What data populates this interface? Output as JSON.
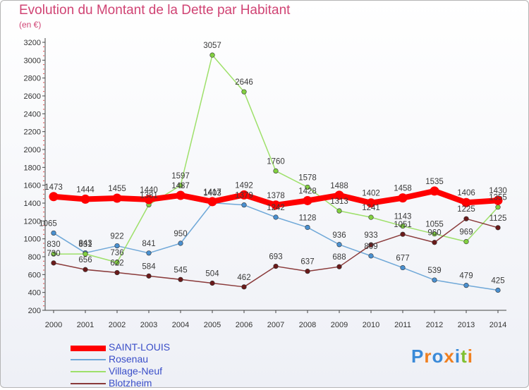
{
  "title": "Evolution du Montant de la Dette par Habitant",
  "unit": "(en €)",
  "logo": "Proxiti",
  "chart_data": {
    "type": "line",
    "title": "Evolution du Montant de la Dette par Habitant",
    "ylabel": "(en €)",
    "xlabel": "",
    "x": [
      "2000",
      "2001",
      "2002",
      "2003",
      "2004",
      "2005",
      "2006",
      "2007",
      "2008",
      "2009",
      "2010",
      "2011",
      "2012",
      "2013",
      "2014"
    ],
    "ylim": [
      200,
      3200
    ],
    "yticks": [
      200,
      400,
      600,
      800,
      1000,
      1200,
      1400,
      1600,
      1800,
      2000,
      2200,
      2400,
      2600,
      2800,
      3000,
      3200
    ],
    "grid": false,
    "legend_position": "bottom-left",
    "series": [
      {
        "name": "SAINT-LOUIS",
        "color": "#ff0000",
        "marker": "#ff0000",
        "width": 8,
        "values": [
          1473,
          1444,
          1455,
          1440,
          1487,
          1417,
          1492,
          1378,
          1428,
          1488,
          1402,
          1458,
          1535,
          1406,
          1430
        ]
      },
      {
        "name": "Rosenau",
        "color": "#6fa8d8",
        "marker": "#4a90d0",
        "width": 1.5,
        "values": [
          1065,
          843,
          922,
          841,
          950,
          1403,
          1379,
          1242,
          1128,
          936,
          809,
          677,
          539,
          479,
          425
        ]
      },
      {
        "name": "Village-Neuf",
        "color": "#9ee06a",
        "marker": "#82d040",
        "width": 1.5,
        "values": [
          830,
          831,
          736,
          1381,
          1597,
          3057,
          2646,
          1760,
          1578,
          1313,
          1241,
          1143,
          1055,
          969,
          1355
        ]
      },
      {
        "name": "Blotzheim",
        "color": "#8a3a3a",
        "marker": "#6a1a1a",
        "width": 1.5,
        "values": [
          730,
          656,
          622,
          584,
          545,
          504,
          462,
          693,
          637,
          688,
          933,
          1051,
          960,
          1225,
          1125
        ]
      }
    ]
  }
}
